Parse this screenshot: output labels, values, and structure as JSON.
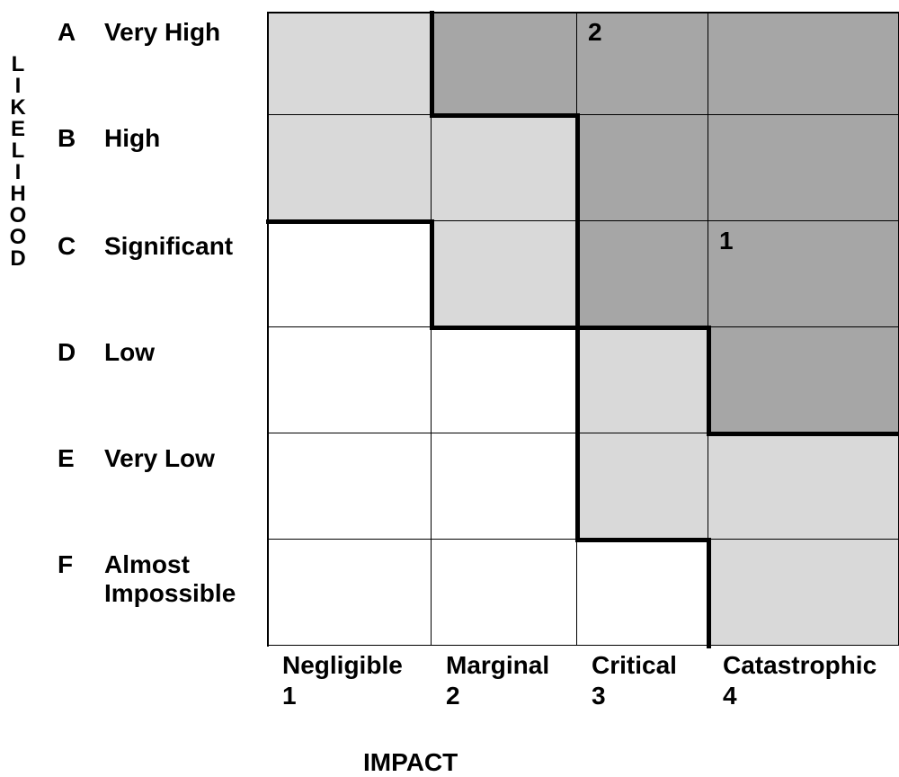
{
  "y_axis": {
    "title_letters": [
      "L",
      "I",
      "K",
      "E",
      "L",
      "I",
      "H",
      "O",
      "O",
      "D"
    ]
  },
  "x_axis": {
    "title": "IMPACT"
  },
  "rows": [
    {
      "letter": "A",
      "label": "Very High"
    },
    {
      "letter": "B",
      "label": "High"
    },
    {
      "letter": "C",
      "label": "Significant"
    },
    {
      "letter": "D",
      "label": "Low"
    },
    {
      "letter": "E",
      "label": "Very Low"
    },
    {
      "letter": "F",
      "label": "Almost Impossible"
    }
  ],
  "columns": [
    {
      "name": "Negligible",
      "number": "1"
    },
    {
      "name": "Marginal",
      "number": "2"
    },
    {
      "name": "Critical",
      "number": "3"
    },
    {
      "name": "Catastrophic",
      "number": "4"
    }
  ],
  "zone_colors": {
    "high": "#a6a6a6",
    "medium": "#d9d9d9",
    "low": "#ffffff"
  },
  "matrix": [
    [
      "medium",
      "high",
      "high",
      "high"
    ],
    [
      "medium",
      "medium",
      "high",
      "high"
    ],
    [
      "low",
      "medium",
      "high",
      "high"
    ],
    [
      "low",
      "low",
      "medium",
      "high"
    ],
    [
      "low",
      "low",
      "medium",
      "medium"
    ],
    [
      "low",
      "low",
      "low",
      "medium"
    ]
  ],
  "markers": [
    {
      "row": 0,
      "col": 2,
      "label": "2"
    },
    {
      "row": 2,
      "col": 3,
      "label": "1"
    }
  ]
}
